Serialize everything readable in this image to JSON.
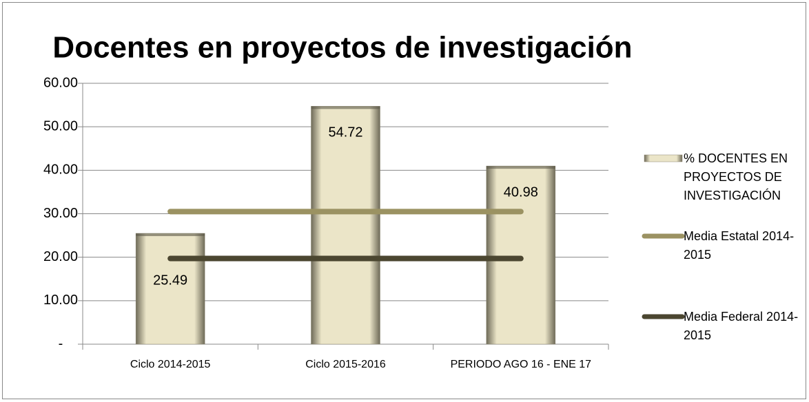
{
  "chart_data": {
    "type": "bar",
    "title": "Docentes en proyectos de investigación",
    "categories": [
      "Ciclo 2014-2015",
      "Ciclo 2015-2016",
      "PERIODO AGO 16 - ENE 17"
    ],
    "series": [
      {
        "name": "% DOCENTES EN PROYECTOS DE INVESTIGACIÓN",
        "type": "bar",
        "color": "#ebe5c8",
        "values": [
          25.49,
          54.72,
          40.98
        ]
      },
      {
        "name": "Media Estatal 2014-2015",
        "type": "line",
        "color": "#9b9262",
        "values": [
          30.5,
          30.5,
          30.5
        ]
      },
      {
        "name": "Media Federal 2014-2015",
        "type": "line",
        "color": "#4b4630",
        "values": [
          19.7,
          19.7,
          19.7
        ]
      }
    ],
    "ylim": [
      0,
      60
    ],
    "yticks": [
      {
        "value": 0,
        "label": "-"
      },
      {
        "value": 10,
        "label": "10.00"
      },
      {
        "value": 20,
        "label": "20.00"
      },
      {
        "value": 30,
        "label": "30.00"
      },
      {
        "value": 40,
        "label": "40.00"
      },
      {
        "value": 50,
        "label": "50.00"
      },
      {
        "value": 60,
        "label": "60.00"
      }
    ],
    "grid": true,
    "legend": "right"
  }
}
